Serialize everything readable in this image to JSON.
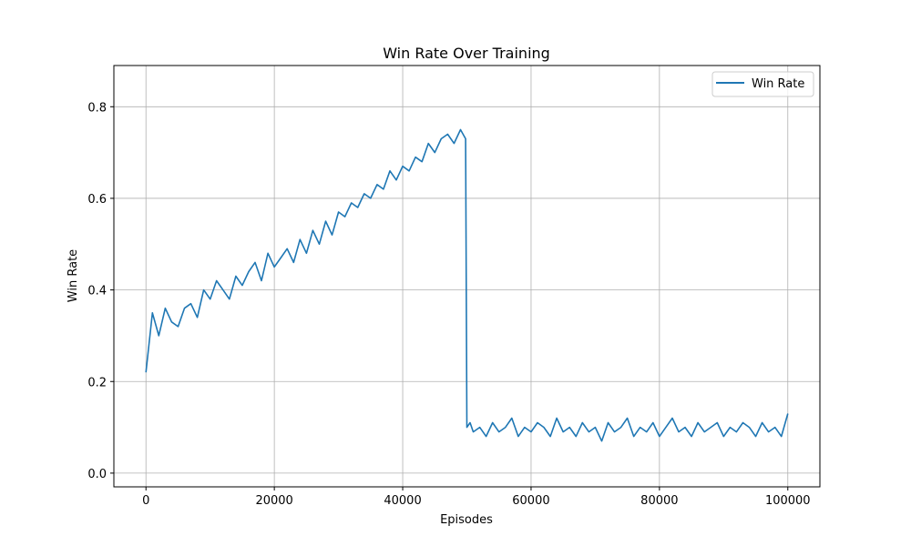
{
  "chart_data": {
    "type": "line",
    "title": "Win Rate Over Training",
    "xlabel": "Episodes",
    "ylabel": "Win Rate",
    "xlim": [
      -5000,
      105000
    ],
    "ylim": [
      -0.03,
      0.89
    ],
    "xticks": [
      0,
      20000,
      40000,
      60000,
      80000,
      100000
    ],
    "xtick_labels": [
      "0",
      "20000",
      "40000",
      "60000",
      "80000",
      "100000"
    ],
    "yticks": [
      0.0,
      0.2,
      0.4,
      0.6,
      0.8
    ],
    "ytick_labels": [
      "0.0",
      "0.2",
      "0.4",
      "0.6",
      "0.8"
    ],
    "grid": true,
    "legend": {
      "position": "top-right"
    },
    "series": [
      {
        "name": "Win Rate",
        "color": "#1f77b4",
        "x": [
          0,
          1000,
          2000,
          3000,
          4000,
          5000,
          6000,
          7000,
          8000,
          9000,
          10000,
          11000,
          12000,
          13000,
          14000,
          15000,
          16000,
          17000,
          18000,
          19000,
          20000,
          21000,
          22000,
          23000,
          24000,
          25000,
          26000,
          27000,
          28000,
          29000,
          30000,
          31000,
          32000,
          33000,
          34000,
          35000,
          36000,
          37000,
          38000,
          39000,
          40000,
          41000,
          42000,
          43000,
          44000,
          45000,
          46000,
          47000,
          48000,
          49000,
          49800,
          50000,
          50500,
          51000,
          52000,
          53000,
          54000,
          55000,
          56000,
          57000,
          58000,
          59000,
          60000,
          61000,
          62000,
          63000,
          64000,
          65000,
          66000,
          67000,
          68000,
          69000,
          70000,
          71000,
          72000,
          73000,
          74000,
          75000,
          76000,
          77000,
          78000,
          79000,
          80000,
          81000,
          82000,
          83000,
          84000,
          85000,
          86000,
          87000,
          88000,
          89000,
          90000,
          91000,
          92000,
          93000,
          94000,
          95000,
          96000,
          97000,
          98000,
          99000,
          100000
        ],
        "values": [
          0.22,
          0.35,
          0.3,
          0.36,
          0.33,
          0.32,
          0.36,
          0.37,
          0.34,
          0.4,
          0.38,
          0.42,
          0.4,
          0.38,
          0.43,
          0.41,
          0.44,
          0.46,
          0.42,
          0.48,
          0.45,
          0.47,
          0.49,
          0.46,
          0.51,
          0.48,
          0.53,
          0.5,
          0.55,
          0.52,
          0.57,
          0.56,
          0.59,
          0.58,
          0.61,
          0.6,
          0.63,
          0.62,
          0.66,
          0.64,
          0.67,
          0.66,
          0.69,
          0.68,
          0.72,
          0.7,
          0.73,
          0.74,
          0.72,
          0.75,
          0.73,
          0.1,
          0.11,
          0.09,
          0.1,
          0.08,
          0.11,
          0.09,
          0.1,
          0.12,
          0.08,
          0.1,
          0.09,
          0.11,
          0.1,
          0.08,
          0.12,
          0.09,
          0.1,
          0.08,
          0.11,
          0.09,
          0.1,
          0.07,
          0.11,
          0.09,
          0.1,
          0.12,
          0.08,
          0.1,
          0.09,
          0.11,
          0.08,
          0.1,
          0.12,
          0.09,
          0.1,
          0.08,
          0.11,
          0.09,
          0.1,
          0.11,
          0.08,
          0.1,
          0.09,
          0.11,
          0.1,
          0.08,
          0.11,
          0.09,
          0.1,
          0.08,
          0.13
        ]
      }
    ]
  }
}
